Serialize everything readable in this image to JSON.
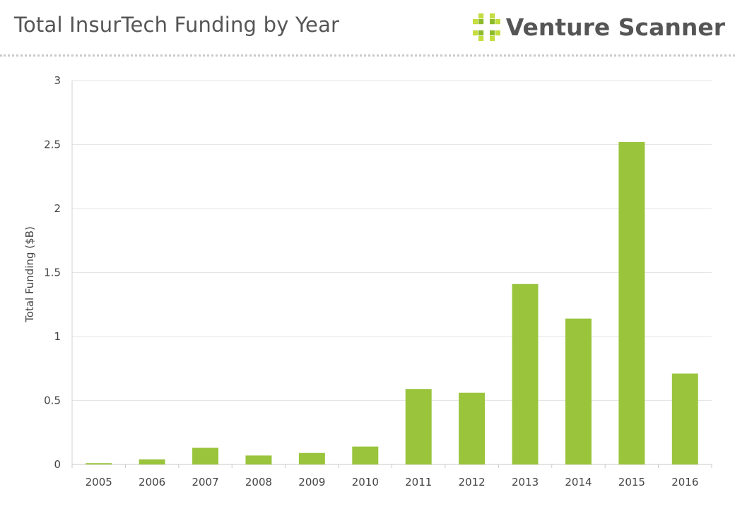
{
  "header": {
    "title": "Total InsurTech Funding by Year",
    "brand_name": "Venture Scanner",
    "brand_icon": "venture-scanner-logo-icon"
  },
  "colors": {
    "bar": "#99c43c",
    "logo_light": "#c5dd3f",
    "logo_dark": "#8dbb2b",
    "text": "#555555",
    "grid": "#e6e6e6"
  },
  "chart_data": {
    "type": "bar",
    "title": "Total InsurTech Funding by Year",
    "xlabel": "",
    "ylabel": "Total Funding ($B)",
    "ylim": [
      0,
      3
    ],
    "yticks": [
      0,
      0.5,
      1,
      1.5,
      2,
      2.5,
      3
    ],
    "ytick_labels": [
      "0",
      "0.5",
      "1",
      "1.5",
      "2",
      "2.5",
      "3"
    ],
    "grid": true,
    "legend": "none",
    "categories": [
      "2005",
      "2006",
      "2007",
      "2008",
      "2009",
      "2010",
      "2011",
      "2012",
      "2013",
      "2014",
      "2015",
      "2016"
    ],
    "values": [
      0.01,
      0.04,
      0.13,
      0.07,
      0.09,
      0.14,
      0.59,
      0.56,
      1.41,
      1.14,
      2.52,
      0.71
    ]
  }
}
